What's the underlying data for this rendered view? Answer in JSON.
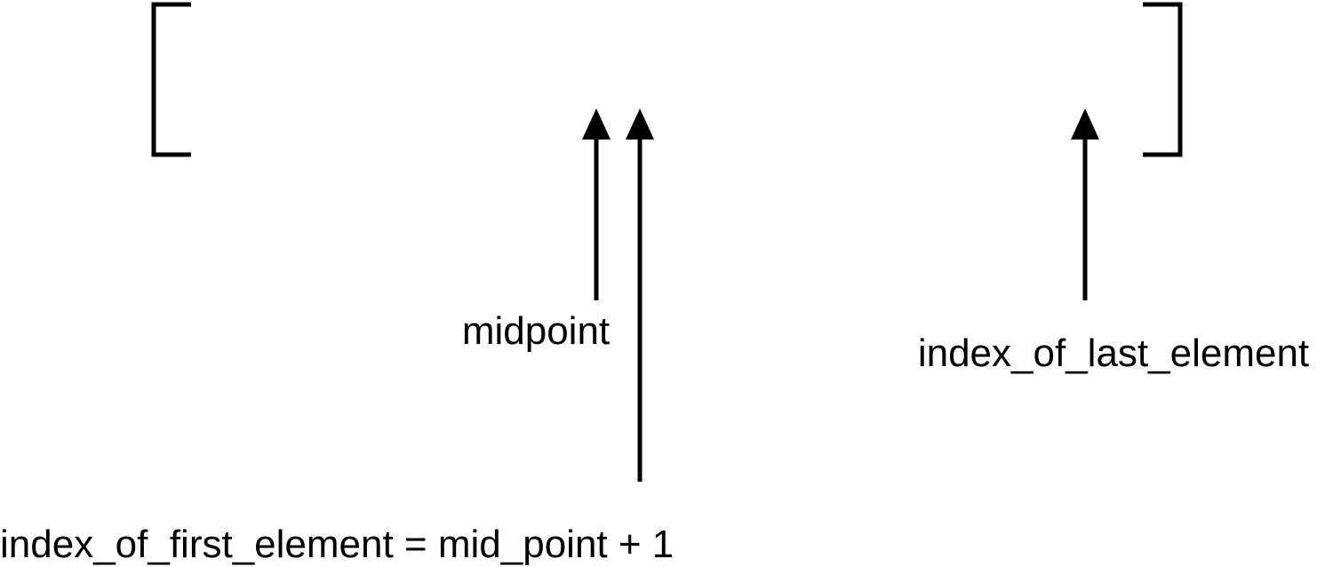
{
  "labels": {
    "midpoint": "midpoint",
    "last_index": "index_of_last_element",
    "first_index": "index_of_first_element = mid_point + 1"
  },
  "colors": {
    "stroke": "#000000",
    "background": "#ffffff"
  }
}
